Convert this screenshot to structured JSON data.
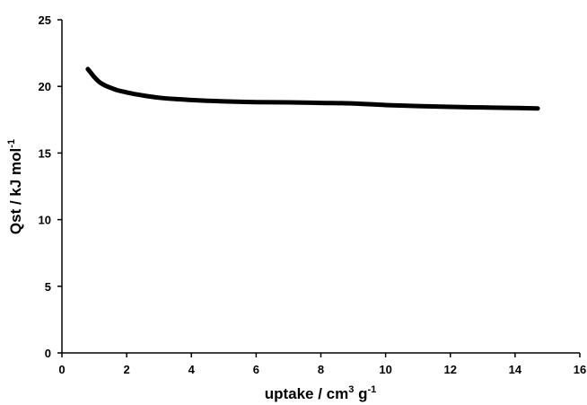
{
  "chart_data": {
    "type": "line",
    "title": "",
    "xlabel": {
      "base": "uptake / cm",
      "sup1": "3",
      "mid": " g",
      "sup2": "-1"
    },
    "ylabel": {
      "base": "Qst / kJ mol",
      "sup": "-1"
    },
    "xlim": [
      0,
      16
    ],
    "ylim": [
      0,
      25
    ],
    "xticks": [
      0,
      2,
      4,
      6,
      8,
      10,
      12,
      14,
      16
    ],
    "yticks": [
      0,
      5,
      10,
      15,
      20,
      25
    ],
    "grid": false,
    "legend": "none",
    "line_color": "#000000",
    "series": [
      {
        "x": [
          0.8,
          0.9,
          1.0,
          1.1,
          1.2,
          1.35,
          1.5,
          1.7,
          2.0,
          2.3,
          2.6,
          3.0,
          3.5,
          4.0,
          4.5,
          5.0,
          6.0,
          7.0,
          8.0,
          9.0,
          10.0,
          11.0,
          12.0,
          13.0,
          14.0,
          14.7
        ],
        "y": [
          21.3,
          21.0,
          20.7,
          20.45,
          20.25,
          20.05,
          19.9,
          19.72,
          19.55,
          19.4,
          19.28,
          19.15,
          19.05,
          18.98,
          18.92,
          18.88,
          18.82,
          18.8,
          18.76,
          18.72,
          18.6,
          18.52,
          18.46,
          18.42,
          18.38,
          18.35
        ]
      }
    ]
  }
}
